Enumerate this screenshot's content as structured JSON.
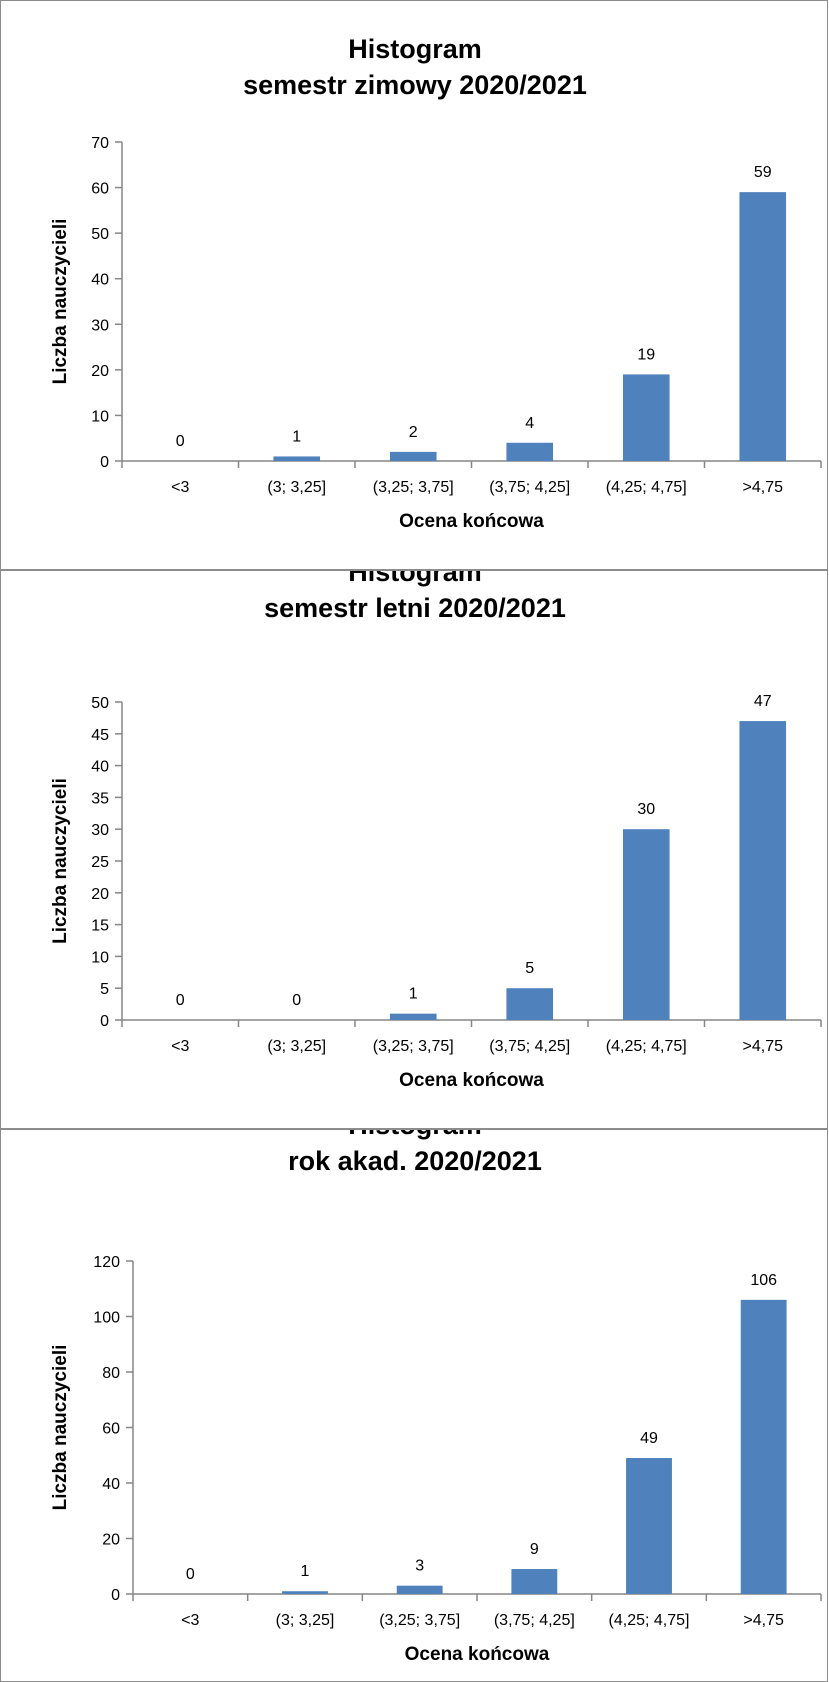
{
  "chart_data": [
    {
      "type": "bar",
      "title": "Histogram",
      "subtitle": "semestr zimowy 2020/2021",
      "xlabel": "Ocena końcowa",
      "ylabel": "Liczba nauczycieli",
      "categories": [
        "<3",
        "(3; 3,25]",
        "(3,25; 3,75]",
        "(3,75; 4,25]",
        "(4,25; 4,75]",
        ">4,75"
      ],
      "values": [
        0,
        1,
        2,
        4,
        19,
        59
      ],
      "ylim": [
        0,
        70
      ],
      "ystep": 10,
      "grid": false,
      "color": "#4f81bd"
    },
    {
      "type": "bar",
      "title": "Histogram",
      "subtitle": "semestr letni 2020/2021",
      "xlabel": "Ocena końcowa",
      "ylabel": "Liczba nauczycieli",
      "categories": [
        "<3",
        "(3; 3,25]",
        "(3,25; 3,75]",
        "(3,75; 4,25]",
        "(4,25; 4,75]",
        ">4,75"
      ],
      "values": [
        0,
        0,
        1,
        5,
        30,
        47
      ],
      "ylim": [
        0,
        50
      ],
      "ystep": 5,
      "grid": false,
      "color": "#4f81bd"
    },
    {
      "type": "bar",
      "title": "Histogram",
      "subtitle": "rok akad. 2020/2021",
      "xlabel": "Ocena końcowa",
      "ylabel": "Liczba nauczycieli",
      "categories": [
        "<3",
        "(3; 3,25]",
        "(3,25; 3,75]",
        "(3,75; 4,25]",
        "(4,25; 4,75]",
        ">4,75"
      ],
      "values": [
        0,
        1,
        3,
        9,
        49,
        106
      ],
      "ylim": [
        0,
        120
      ],
      "ystep": 20,
      "grid": false,
      "color": "#4f81bd"
    }
  ]
}
